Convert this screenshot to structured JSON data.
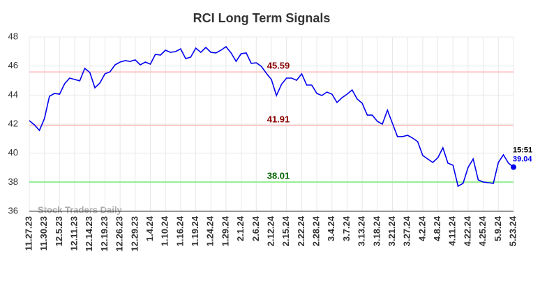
{
  "chart_data": {
    "type": "line",
    "title": "RCI Long Term Signals",
    "categories": [
      "11.27.23",
      null,
      null,
      "11.30.23",
      null,
      null,
      "12.5.23",
      null,
      null,
      "12.11.23",
      null,
      null,
      "12.14.23",
      null,
      null,
      "12.19.23",
      null,
      null,
      "12.26.23",
      null,
      null,
      "12.29.23",
      null,
      null,
      "1.4.24",
      null,
      null,
      "1.10.24",
      null,
      null,
      "1.16.24",
      null,
      null,
      "1.19.24",
      null,
      null,
      "1.24.24",
      null,
      null,
      "1.29.24",
      null,
      null,
      "2.1.24",
      null,
      null,
      "2.6.24",
      null,
      null,
      "2.12.24",
      null,
      null,
      "2.15.24",
      null,
      null,
      "2.22.24",
      null,
      null,
      "2.28.24",
      null,
      null,
      "3.4.24",
      null,
      null,
      "3.7.24",
      null,
      null,
      "3.13.24",
      null,
      null,
      "3.18.24",
      null,
      null,
      "3.21.24",
      null,
      null,
      "3.27.24",
      null,
      null,
      "4.2.24",
      null,
      null,
      "4.8.24",
      null,
      null,
      "4.11.24",
      null,
      null,
      "4.22.24",
      null,
      null,
      "4.25.24",
      null,
      null,
      "5.9.24",
      null,
      null,
      "5.23.24"
    ],
    "values": [
      42.24,
      41.95,
      41.57,
      42.38,
      43.92,
      44.11,
      44.06,
      44.78,
      45.17,
      45.07,
      44.98,
      45.84,
      45.55,
      44.5,
      44.83,
      45.46,
      45.6,
      46.08,
      46.27,
      46.37,
      46.32,
      46.42,
      46.08,
      46.27,
      46.13,
      46.8,
      46.75,
      47.09,
      46.94,
      46.99,
      47.18,
      46.51,
      46.61,
      47.23,
      46.94,
      47.28,
      46.94,
      46.9,
      47.09,
      47.33,
      46.9,
      46.32,
      46.85,
      46.9,
      46.18,
      46.22,
      45.98,
      45.5,
      45.07,
      43.97,
      44.74,
      45.17,
      45.17,
      45.02,
      45.46,
      44.69,
      44.69,
      44.11,
      43.97,
      44.21,
      44.06,
      43.49,
      43.82,
      44.06,
      44.35,
      43.73,
      43.44,
      42.62,
      42.62,
      42.19,
      42.0,
      42.96,
      42.05,
      41.14,
      41.14,
      41.23,
      41.04,
      40.8,
      39.84,
      39.6,
      39.36,
      39.69,
      40.37,
      39.31,
      39.17,
      37.73,
      37.92,
      39.02,
      39.6,
      38.16,
      38.01,
      37.97,
      37.92,
      39.36,
      39.89,
      39.31,
      39.04
    ],
    "color": "#0000ee",
    "ylim": [
      36,
      48
    ],
    "yticks": [
      36,
      38,
      40,
      42,
      44,
      46,
      48
    ],
    "grid": true,
    "hlines": [
      {
        "value": 45.59,
        "color": "#ffc8c8",
        "label_color": "#8b0000"
      },
      {
        "value": 41.91,
        "color": "#ffc8c8",
        "label_color": "#8b0000"
      },
      {
        "value": 38.01,
        "color": "#90ee90",
        "label_color": "#006400"
      }
    ],
    "last_point_time": "15:51",
    "watermark": "Stock Traders Daily"
  }
}
